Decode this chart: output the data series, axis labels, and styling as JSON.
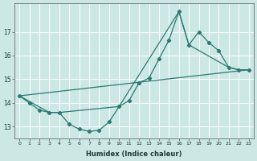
{
  "xlabel": "Humidex (Indice chaleur)",
  "bg_color": "#cce8e4",
  "grid_color": "#ffffff",
  "line_color": "#2a7a72",
  "xlim": [
    -0.5,
    23.5
  ],
  "ylim": [
    12.5,
    18.2
  ],
  "yticks": [
    13,
    14,
    15,
    16,
    17
  ],
  "xticks": [
    0,
    1,
    2,
    3,
    4,
    5,
    6,
    7,
    8,
    9,
    10,
    11,
    12,
    13,
    14,
    15,
    16,
    17,
    18,
    19,
    20,
    21,
    22,
    23
  ],
  "series1_x": [
    0,
    1,
    2,
    3,
    4,
    5,
    6,
    7,
    8,
    9,
    10,
    11,
    12,
    13,
    14,
    15,
    16,
    17,
    18,
    19,
    20,
    21,
    22,
    23
  ],
  "series1_y": [
    14.3,
    14.0,
    13.7,
    13.6,
    13.6,
    13.1,
    12.9,
    12.8,
    12.85,
    13.2,
    13.85,
    14.1,
    14.85,
    15.05,
    15.85,
    16.65,
    17.85,
    16.45,
    17.0,
    16.55,
    16.2,
    15.5,
    15.4,
    15.4
  ],
  "series2_x": [
    0,
    3,
    4,
    10,
    16,
    17,
    21,
    22,
    23
  ],
  "series2_y": [
    14.3,
    13.6,
    13.6,
    13.85,
    17.85,
    16.45,
    15.5,
    15.4,
    15.4
  ],
  "series3_x": [
    0,
    23
  ],
  "series3_y": [
    14.3,
    15.4
  ]
}
